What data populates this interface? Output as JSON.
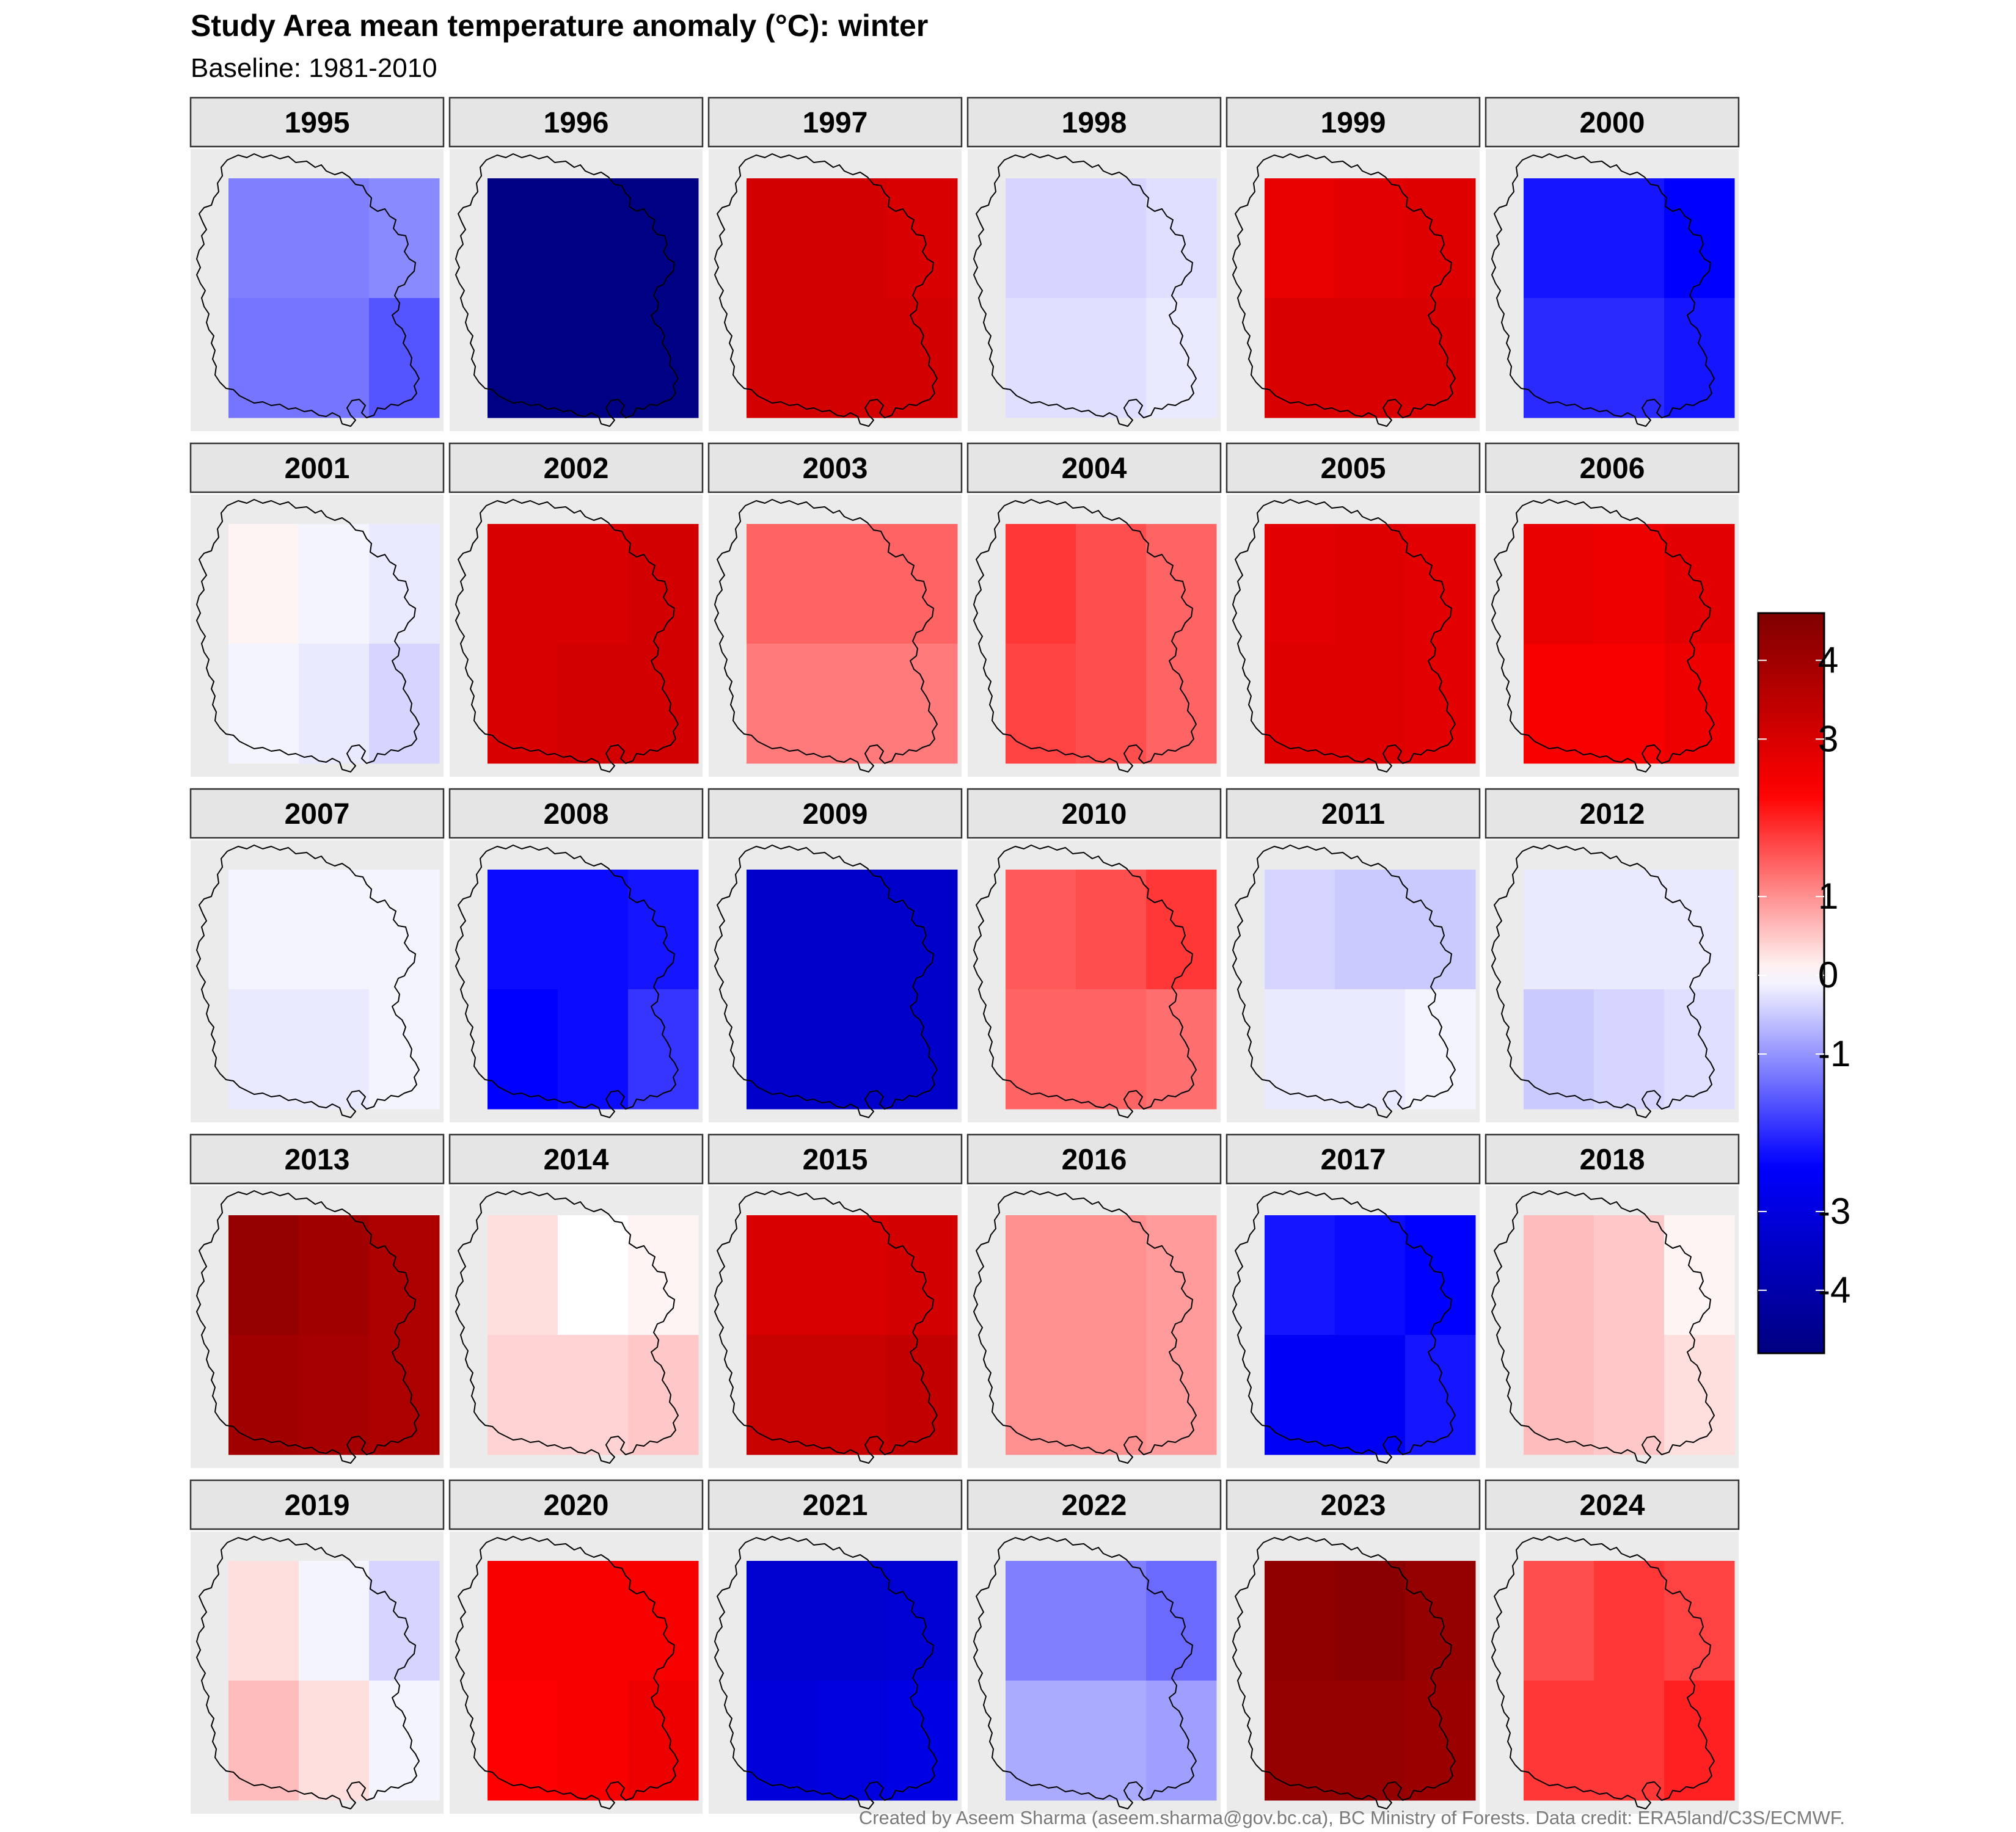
{
  "chart_data": {
    "type": "heatmap",
    "title": "Study Area mean temperature anomaly (°C): winter",
    "subtitle": "Baseline: 1981-2010",
    "caption": "Created by Aseem Sharma (aseem.sharma@gov.bc.ca), BC Ministry of Forests. Data credit: ERA5land/C3S/ECMWF.",
    "panels_description": "Each facet is a 3 x 2 grid of cells (columns west to east, rows north to south) with the study area boundary outline overlaid.",
    "colorbar": {
      "min": -4.8,
      "max": 4.6,
      "ticks": [
        -4,
        -3,
        -1,
        0,
        1,
        3,
        4
      ],
      "colors": {
        "neg_end": "#00007f",
        "neg_mid": "#0000ff",
        "zero": "#ffffff",
        "pos_mid": "#ff0000",
        "pos_end": "#7f0000"
      }
    },
    "facets": [
      {
        "year": "1995",
        "cells": [
          [
            -1.2,
            -1.2,
            -1.1
          ],
          [
            -1.3,
            -1.3,
            -1.6
          ]
        ]
      },
      {
        "year": "1996",
        "cells": [
          [
            -4.7,
            -4.7,
            -4.7
          ],
          [
            -4.7,
            -4.7,
            -4.7
          ]
        ]
      },
      {
        "year": "1997",
        "cells": [
          [
            3.1,
            3.1,
            3.0
          ],
          [
            3.1,
            3.1,
            3.1
          ]
        ]
      },
      {
        "year": "1998",
        "cells": [
          [
            -0.4,
            -0.4,
            -0.3
          ],
          [
            -0.3,
            -0.3,
            -0.2
          ]
        ]
      },
      {
        "year": "1999",
        "cells": [
          [
            2.7,
            2.8,
            2.9
          ],
          [
            3.0,
            3.0,
            3.0
          ]
        ]
      },
      {
        "year": "2000",
        "cells": [
          [
            -2.2,
            -2.2,
            -2.4
          ],
          [
            -2.0,
            -2.0,
            -2.2
          ]
        ]
      },
      {
        "year": "2001",
        "cells": [
          [
            0.1,
            -0.1,
            -0.2
          ],
          [
            -0.1,
            -0.2,
            -0.4
          ]
        ]
      },
      {
        "year": "2002",
        "cells": [
          [
            3.0,
            3.0,
            3.1
          ],
          [
            3.0,
            3.1,
            3.1
          ]
        ]
      },
      {
        "year": "2003",
        "cells": [
          [
            1.4,
            1.4,
            1.4
          ],
          [
            1.2,
            1.2,
            1.2
          ]
        ]
      },
      {
        "year": "2004",
        "cells": [
          [
            1.8,
            1.6,
            1.4
          ],
          [
            1.7,
            1.6,
            1.4
          ]
        ]
      },
      {
        "year": "2005",
        "cells": [
          [
            2.8,
            2.9,
            2.8
          ],
          [
            2.9,
            2.9,
            2.8
          ]
        ]
      },
      {
        "year": "2006",
        "cells": [
          [
            2.7,
            2.6,
            2.8
          ],
          [
            2.4,
            2.4,
            2.6
          ]
        ]
      },
      {
        "year": "2007",
        "cells": [
          [
            -0.1,
            -0.1,
            -0.1
          ],
          [
            -0.2,
            -0.2,
            -0.1
          ]
        ]
      },
      {
        "year": "2008",
        "cells": [
          [
            -2.3,
            -2.3,
            -2.2
          ],
          [
            -2.4,
            -2.3,
            -1.9
          ]
        ]
      },
      {
        "year": "2009",
        "cells": [
          [
            -3.4,
            -3.4,
            -3.4
          ],
          [
            -3.4,
            -3.4,
            -3.4
          ]
        ]
      },
      {
        "year": "2010",
        "cells": [
          [
            1.5,
            1.6,
            1.8
          ],
          [
            1.4,
            1.4,
            1.3
          ]
        ]
      },
      {
        "year": "2011",
        "cells": [
          [
            -0.4,
            -0.5,
            -0.5
          ],
          [
            -0.2,
            -0.2,
            -0.1
          ]
        ]
      },
      {
        "year": "2012",
        "cells": [
          [
            -0.2,
            -0.2,
            -0.2
          ],
          [
            -0.5,
            -0.4,
            -0.3
          ]
        ]
      },
      {
        "year": "2013",
        "cells": [
          [
            4.2,
            4.0,
            3.8
          ],
          [
            4.0,
            3.9,
            3.8
          ]
        ]
      },
      {
        "year": "2014",
        "cells": [
          [
            0.3,
            0.0,
            0.1
          ],
          [
            0.4,
            0.4,
            0.5
          ]
        ]
      },
      {
        "year": "2015",
        "cells": [
          [
            3.0,
            3.0,
            3.1
          ],
          [
            3.3,
            3.3,
            3.4
          ]
        ]
      },
      {
        "year": "2016",
        "cells": [
          [
            1.0,
            1.0,
            0.9
          ],
          [
            1.0,
            1.0,
            0.9
          ]
        ]
      },
      {
        "year": "2017",
        "cells": [
          [
            -2.2,
            -2.3,
            -2.4
          ],
          [
            -2.6,
            -2.6,
            -2.2
          ]
        ]
      },
      {
        "year": "2018",
        "cells": [
          [
            0.6,
            0.5,
            0.1
          ],
          [
            0.6,
            0.5,
            0.3
          ]
        ]
      },
      {
        "year": "2019",
        "cells": [
          [
            0.3,
            -0.1,
            -0.4
          ],
          [
            0.6,
            0.3,
            -0.1
          ]
        ]
      },
      {
        "year": "2020",
        "cells": [
          [
            2.4,
            2.4,
            2.4
          ],
          [
            2.3,
            2.4,
            2.6
          ]
        ]
      },
      {
        "year": "2021",
        "cells": [
          [
            -3.3,
            -3.3,
            -3.2
          ],
          [
            -3.1,
            -3.0,
            -2.9
          ]
        ]
      },
      {
        "year": "2022",
        "cells": [
          [
            -1.2,
            -1.2,
            -1.4
          ],
          [
            -0.8,
            -0.8,
            -0.9
          ]
        ]
      },
      {
        "year": "2023",
        "cells": [
          [
            4.3,
            4.4,
            4.2
          ],
          [
            4.2,
            4.2,
            4.1
          ]
        ]
      },
      {
        "year": "2024",
        "cells": [
          [
            1.6,
            1.8,
            1.7
          ],
          [
            1.8,
            1.8,
            2.0
          ]
        ]
      }
    ]
  }
}
